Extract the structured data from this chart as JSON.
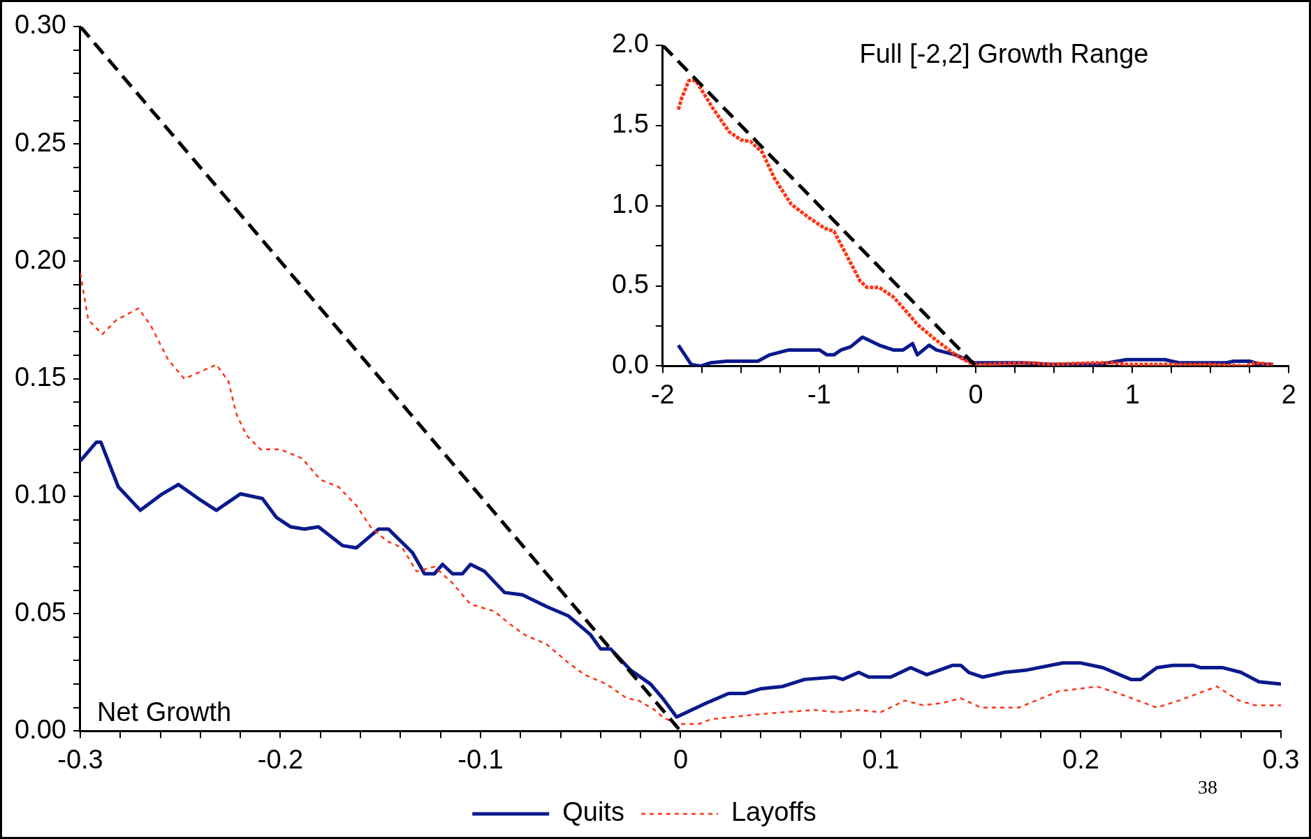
{
  "chart_data": [
    {
      "type": "line",
      "xlim": [
        -0.3,
        0.3
      ],
      "ylim": [
        0,
        0.3
      ],
      "xticks": [
        {
          "value": -0.3,
          "label": "-0.3"
        },
        {
          "value": -0.28,
          "label": null
        },
        {
          "value": -0.26,
          "label": null
        },
        {
          "value": -0.24,
          "label": null
        },
        {
          "value": -0.22,
          "label": null
        },
        {
          "value": -0.2,
          "label": "-0.2"
        },
        {
          "value": -0.18,
          "label": null
        },
        {
          "value": -0.16,
          "label": null
        },
        {
          "value": -0.14,
          "label": null
        },
        {
          "value": -0.12,
          "label": null
        },
        {
          "value": -0.1,
          "label": "-0.1"
        },
        {
          "value": -0.08,
          "label": null
        },
        {
          "value": -0.06,
          "label": null
        },
        {
          "value": -0.04,
          "label": null
        },
        {
          "value": -0.02,
          "label": null
        },
        0,
        {
          "value": 0.02,
          "label": null
        },
        {
          "value": 0.04,
          "label": null
        },
        {
          "value": 0.06,
          "label": null
        },
        {
          "value": 0.08,
          "label": null
        },
        0.1,
        {
          "value": 0.12,
          "label": null
        },
        {
          "value": 0.14,
          "label": null
        },
        {
          "value": 0.16,
          "label": null
        },
        {
          "value": 0.18,
          "label": null
        },
        0.2,
        {
          "value": 0.22,
          "label": null
        },
        {
          "value": 0.24,
          "label": null
        },
        {
          "value": 0.26,
          "label": null
        },
        {
          "value": 0.28,
          "label": null
        },
        0.3
      ],
      "yticks": [
        {
          "value": 0,
          "label": "0.00"
        },
        {
          "value": 0.01,
          "label": null
        },
        {
          "value": 0.02,
          "label": null
        },
        {
          "value": 0.03,
          "label": null
        },
        {
          "value": 0.04,
          "label": null
        },
        0.05,
        {
          "value": 0.06,
          "label": null
        },
        {
          "value": 0.07,
          "label": null
        },
        {
          "value": 0.08,
          "label": null
        },
        {
          "value": 0.09,
          "label": null
        },
        {
          "value": 0.1,
          "label": "0.10"
        },
        {
          "value": 0.11,
          "label": null
        },
        {
          "value": 0.12,
          "label": null
        },
        {
          "value": 0.13,
          "label": null
        },
        {
          "value": 0.14,
          "label": null
        },
        0.15,
        {
          "value": 0.16,
          "label": null
        },
        {
          "value": 0.17,
          "label": null
        },
        {
          "value": 0.18,
          "label": null
        },
        {
          "value": 0.19,
          "label": null
        },
        {
          "value": 0.2,
          "label": "0.20"
        },
        {
          "value": 0.21,
          "label": null
        },
        {
          "value": 0.22,
          "label": null
        },
        {
          "value": 0.23,
          "label": null
        },
        {
          "value": 0.24,
          "label": null
        },
        0.25,
        {
          "value": 0.26,
          "label": null
        },
        {
          "value": 0.27,
          "label": null
        },
        {
          "value": 0.28,
          "label": null
        },
        {
          "value": 0.29,
          "label": null
        },
        {
          "value": 0.3,
          "label": "0.30"
        }
      ],
      "legend": "bottom",
      "annotations": [
        "Net Growth",
        "38"
      ],
      "series": [
        {
          "name": "Quits",
          "color": "#0a1a8c",
          "line_style": "solid",
          "x": [
            -0.3,
            -0.292,
            -0.2897,
            -0.281,
            -0.27,
            -0.259,
            -0.251,
            -0.241,
            -0.232,
            -0.22,
            -0.209,
            -0.202,
            -0.195,
            -0.188,
            -0.181,
            -0.169,
            -0.162,
            -0.151,
            -0.146,
            -0.134,
            -0.128,
            -0.123,
            -0.119,
            -0.114,
            -0.109,
            -0.105,
            -0.098,
            -0.088,
            -0.079,
            -0.067,
            -0.056,
            -0.045,
            -0.04,
            -0.035,
            -0.025,
            -0.015,
            -0.009,
            -0.002,
            0.003,
            0.013,
            0.024,
            0.032,
            0.04,
            0.051,
            0.062,
            0.077,
            0.081,
            0.089,
            0.094,
            0.105,
            0.115,
            0.123,
            0.136,
            0.14,
            0.144,
            0.151,
            0.162,
            0.173,
            0.191,
            0.2,
            0.211,
            0.225,
            0.23,
            0.238,
            0.246,
            0.256,
            0.26,
            0.271,
            0.28,
            0.289,
            0.3
          ],
          "values": [
            0.115,
            0.123,
            0.123,
            0.104,
            0.094,
            0.101,
            0.105,
            0.099,
            0.094,
            0.101,
            0.099,
            0.091,
            0.087,
            0.086,
            0.087,
            0.079,
            0.078,
            0.086,
            0.086,
            0.076,
            0.067,
            0.067,
            0.071,
            0.067,
            0.067,
            0.071,
            0.068,
            0.059,
            0.058,
            0.053,
            0.049,
            0.041,
            0.035,
            0.035,
            0.026,
            0.02,
            0.014,
            0.006,
            0.008,
            0.012,
            0.016,
            0.016,
            0.018,
            0.019,
            0.022,
            0.023,
            0.022,
            0.025,
            0.023,
            0.023,
            0.027,
            0.024,
            0.028,
            0.028,
            0.025,
            0.023,
            0.025,
            0.026,
            0.029,
            0.029,
            0.027,
            0.022,
            0.022,
            0.027,
            0.028,
            0.028,
            0.027,
            0.027,
            0.025,
            0.021,
            0.02
          ]
        },
        {
          "name": "Layoffs",
          "color": "#ff3311",
          "line_style": "dotted",
          "x": [
            -0.3,
            -0.296,
            -0.289,
            -0.282,
            -0.271,
            -0.265,
            -0.256,
            -0.248,
            -0.24,
            -0.232,
            -0.226,
            -0.222,
            -0.217,
            -0.21,
            -0.2,
            -0.189,
            -0.18,
            -0.171,
            -0.162,
            -0.155,
            -0.147,
            -0.139,
            -0.132,
            -0.123,
            -0.114,
            -0.105,
            -0.093,
            -0.086,
            -0.078,
            -0.067,
            -0.056,
            -0.048,
            -0.037,
            -0.027,
            -0.021,
            -0.013,
            -0.009,
            -0.002,
            0.009,
            0.015,
            0.037,
            0.051,
            0.067,
            0.078,
            0.089,
            0.1,
            0.112,
            0.121,
            0.131,
            0.14,
            0.15,
            0.169,
            0.189,
            0.199,
            0.208,
            0.219,
            0.238,
            0.249,
            0.268,
            0.279,
            0.287,
            0.3
          ],
          "values": [
            0.195,
            0.175,
            0.169,
            0.175,
            0.18,
            0.173,
            0.158,
            0.15,
            0.153,
            0.156,
            0.149,
            0.135,
            0.126,
            0.12,
            0.12,
            0.116,
            0.107,
            0.104,
            0.096,
            0.087,
            0.081,
            0.078,
            0.068,
            0.07,
            0.063,
            0.054,
            0.051,
            0.046,
            0.041,
            0.037,
            0.029,
            0.024,
            0.02,
            0.014,
            0.013,
            0.009,
            0.006,
            0.003,
            0.003,
            0.005,
            0.007,
            0.008,
            0.009,
            0.008,
            0.009,
            0.008,
            0.013,
            0.011,
            0.012,
            0.014,
            0.01,
            0.01,
            0.017,
            0.018,
            0.019,
            0.016,
            0.01,
            0.013,
            0.019,
            0.013,
            0.011,
            0.011
          ]
        },
        {
          "color": "#000000",
          "line_style": "dashed",
          "x": [
            -0.3,
            0
          ],
          "values": [
            0.3,
            0
          ]
        }
      ]
    },
    {
      "type": "line",
      "title": "Full [-2,2] Growth Range",
      "xlim": [
        -2,
        2
      ],
      "ylim": [
        0,
        2
      ],
      "xticks": [
        -2,
        {
          "value": -1.75,
          "label": null
        },
        {
          "value": -1.5,
          "label": null
        },
        {
          "value": -1.25,
          "label": null
        },
        -1,
        {
          "value": -0.75,
          "label": null
        },
        {
          "value": -0.5,
          "label": null
        },
        {
          "value": -0.25,
          "label": null
        },
        0,
        {
          "value": 0.25,
          "label": null
        },
        {
          "value": 0.5,
          "label": null
        },
        {
          "value": 0.75,
          "label": null
        },
        1,
        {
          "value": 1.25,
          "label": null
        },
        {
          "value": 1.5,
          "label": null
        },
        {
          "value": 1.75,
          "label": null
        },
        2
      ],
      "yticks": [
        {
          "value": 0,
          "label": "0.0"
        },
        {
          "value": 0.25,
          "label": null
        },
        0.5,
        {
          "value": 0.75,
          "label": null
        },
        {
          "value": 1,
          "label": "1.0"
        },
        {
          "value": 1.25,
          "label": null
        },
        1.5,
        {
          "value": 1.75,
          "label": null
        },
        {
          "value": 2,
          "label": "2.0"
        }
      ],
      "series": [
        {
          "color": "#0a1a8c",
          "line_style": "solid",
          "x": [
            -1.9,
            -1.818,
            -1.757,
            -1.696,
            -1.59,
            -1.393,
            -1.316,
            -1.195,
            -0.998,
            -0.952,
            -0.906,
            -0.861,
            -0.8,
            -0.724,
            -0.617,
            -0.526,
            -0.465,
            -0.404,
            -0.374,
            -0.298,
            -0.252,
            -0.131,
            -0.009,
            0.052,
            0.294,
            0.477,
            0.78,
            0.963,
            1.206,
            1.297,
            1.601,
            1.647,
            1.753,
            1.814,
            1.899
          ],
          "values": [
            0.13,
            0.01,
            0.0,
            0.02,
            0.03,
            0.03,
            0.07,
            0.1,
            0.1,
            0.07,
            0.07,
            0.1,
            0.12,
            0.18,
            0.13,
            0.1,
            0.1,
            0.14,
            0.07,
            0.13,
            0.1,
            0.07,
            0.02,
            0.02,
            0.02,
            0.01,
            0.01,
            0.04,
            0.04,
            0.02,
            0.02,
            0.03,
            0.03,
            0.01,
            0.01
          ]
        },
        {
          "color": "#ff3311",
          "line_style": "dotted",
          "x": [
            -1.9,
            -1.879,
            -1.833,
            -1.788,
            -1.681,
            -1.575,
            -1.499,
            -1.438,
            -1.362,
            -1.286,
            -1.18,
            -1.073,
            -0.967,
            -0.906,
            -0.83,
            -0.739,
            -0.694,
            -0.617,
            -0.526,
            -0.435,
            -0.374,
            -0.252,
            -0.131,
            -0.039,
            0.021,
            0.355,
            0.477,
            0.75,
            0.872,
            0.963,
            1.51,
            1.722,
            1.783,
            1.899
          ],
          "values": [
            1.6,
            1.67,
            1.78,
            1.78,
            1.61,
            1.46,
            1.41,
            1.4,
            1.33,
            1.17,
            1.01,
            0.93,
            0.86,
            0.84,
            0.7,
            0.53,
            0.49,
            0.49,
            0.43,
            0.33,
            0.26,
            0.16,
            0.07,
            0.02,
            0.01,
            0.02,
            0.01,
            0.02,
            0.02,
            0.01,
            0.01,
            0.0,
            0.02,
            0.01
          ]
        },
        {
          "color": "#000000",
          "line_style": "dashed",
          "x": [
            -2,
            0
          ],
          "values": [
            2,
            0
          ]
        }
      ]
    }
  ]
}
